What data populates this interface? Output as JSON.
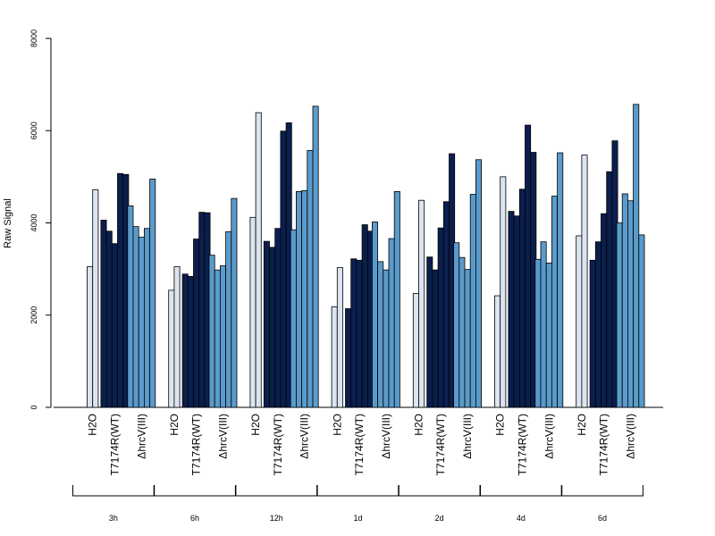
{
  "chart_data": {
    "type": "bar",
    "ylabel": "Raw Signal",
    "ylim": [
      0,
      8000
    ],
    "yticks": [
      0,
      2000,
      4000,
      6000,
      8000
    ],
    "grid": false,
    "legend": "none",
    "groups": [
      {
        "label": "3h",
        "categories": [
          {
            "label": "H2O",
            "color": "#dbe5f1",
            "values": [
              3050,
              4720
            ]
          },
          {
            "label": "T7174R(WT)",
            "color": "#0b1f4e",
            "values": [
              4060,
              3820,
              3550,
              5070,
              5050
            ]
          },
          {
            "label": "ΔhrcV(III)",
            "color": "#5a9bcb",
            "values": [
              4370,
              3920,
              3690,
              3880,
              4950
            ]
          }
        ]
      },
      {
        "label": "6h",
        "categories": [
          {
            "label": "H2O",
            "color": "#dbe5f1",
            "values": [
              2540,
              3050
            ]
          },
          {
            "label": "T7174R(WT)",
            "color": "#0b1f4e",
            "values": [
              2890,
              2840,
              3650,
              4230,
              4220
            ]
          },
          {
            "label": "ΔhrcV(III)",
            "color": "#5a9bcb",
            "values": [
              3300,
              2980,
              3070,
              3810,
              4530
            ]
          }
        ]
      },
      {
        "label": "12h",
        "categories": [
          {
            "label": "H2O",
            "color": "#dbe5f1",
            "values": [
              4120,
              6390
            ]
          },
          {
            "label": "T7174R(WT)",
            "color": "#0b1f4e",
            "values": [
              3600,
              3470,
              3880,
              5990,
              6170
            ]
          },
          {
            "label": "ΔhrcV(III)",
            "color": "#5a9bcb",
            "values": [
              3850,
              4680,
              4700,
              5570,
              6530
            ]
          }
        ]
      },
      {
        "label": "1d",
        "categories": [
          {
            "label": "H2O",
            "color": "#dbe5f1",
            "values": [
              2180,
              3030
            ]
          },
          {
            "label": "T7174R(WT)",
            "color": "#0b1f4e",
            "values": [
              2140,
              3220,
              3190,
              3960,
              3820
            ]
          },
          {
            "label": "ΔhrcV(III)",
            "color": "#5a9bcb",
            "values": [
              4020,
              3160,
              2980,
              3660,
              4680
            ]
          }
        ]
      },
      {
        "label": "2d",
        "categories": [
          {
            "label": "H2O",
            "color": "#dbe5f1",
            "values": [
              2470,
              4490
            ]
          },
          {
            "label": "T7174R(WT)",
            "color": "#0b1f4e",
            "values": [
              3260,
              2980,
              3890,
              4460,
              5500
            ]
          },
          {
            "label": "ΔhrcV(III)",
            "color": "#5a9bcb",
            "values": [
              3570,
              3250,
              2990,
              4620,
              5370
            ]
          }
        ]
      },
      {
        "label": "4d",
        "categories": [
          {
            "label": "H2O",
            "color": "#dbe5f1",
            "values": [
              2420,
              5000
            ]
          },
          {
            "label": "T7174R(WT)",
            "color": "#0b1f4e",
            "values": [
              4250,
              4150,
              4730,
              6120,
              5530
            ]
          },
          {
            "label": "ΔhrcV(III)",
            "color": "#5a9bcb",
            "values": [
              3210,
              3590,
              3130,
              4580,
              5520
            ]
          }
        ]
      },
      {
        "label": "6d",
        "categories": [
          {
            "label": "H2O",
            "color": "#dbe5f1",
            "values": [
              3720,
              5470
            ]
          },
          {
            "label": "T7174R(WT)",
            "color": "#0b1f4e",
            "values": [
              3190,
              3590,
              4200,
              5110,
              5780
            ]
          },
          {
            "label": "ΔhrcV(III)",
            "color": "#5a9bcb",
            "values": [
              4000,
              4630,
              4480,
              6570,
              3740
            ]
          }
        ]
      }
    ]
  }
}
